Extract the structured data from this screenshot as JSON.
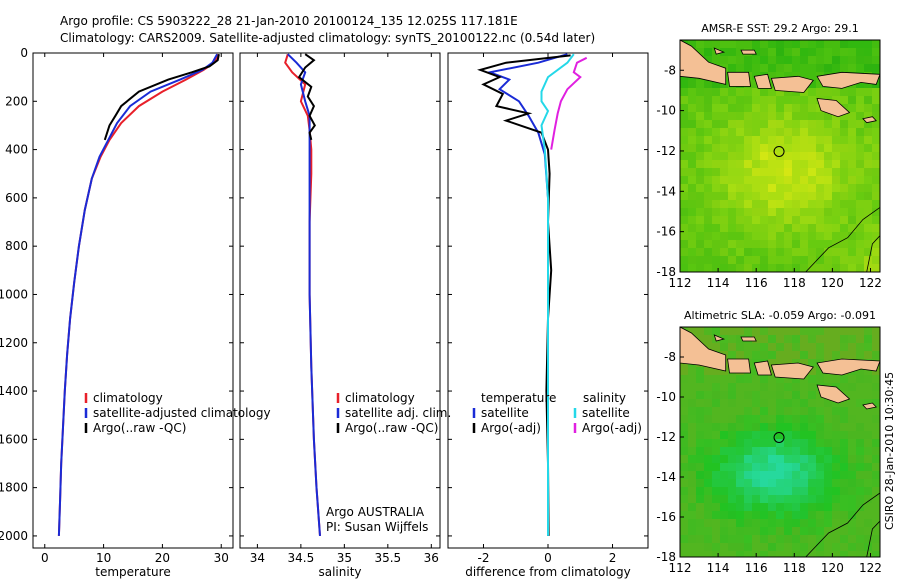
{
  "header": {
    "line1": "Argo profile: CS 5903222_28 21-Jan-2010 20100124_135 12.025S 117.181E",
    "line2": "Climatology: CARS2009. Satellite-adjusted climatology: synTS_20100122.nc (0.54d later)"
  },
  "side_text": "CSIRO 28-Jan-2010 10:30:45",
  "colors": {
    "climatology": "#e8202a",
    "satellite": "#1a2bd6",
    "argo": "#000000",
    "sat_diff": "#24d8e8",
    "argo_adj": "#e020e0",
    "land": "#f4c095"
  },
  "chart_data": [
    {
      "type": "line",
      "id": "temperature",
      "xlabel": "temperature",
      "ylabel": "",
      "xlim": [
        -2,
        32
      ],
      "ylim": [
        2050,
        0
      ],
      "xticks": [
        "0",
        "10",
        "20",
        "30"
      ],
      "xtick_values": [
        0,
        10,
        20,
        30
      ],
      "yticks": [
        "0",
        "200",
        "400",
        "600",
        "800",
        "1000",
        "1200",
        "1400",
        "1600",
        "1800",
        "2000"
      ],
      "ytick_values": [
        0,
        200,
        400,
        600,
        800,
        1000,
        1200,
        1400,
        1600,
        1800,
        2000
      ],
      "legend": [
        "climatology",
        "satellite-adjusted climatology",
        "Argo(..raw -QC)"
      ],
      "series": [
        {
          "name": "climatology",
          "color": "#e8202a",
          "points": [
            [
              29.5,
              5
            ],
            [
              28.8,
              40
            ],
            [
              27,
              70
            ],
            [
              24,
              110
            ],
            [
              20,
              160
            ],
            [
              16,
              220
            ],
            [
              13,
              290
            ],
            [
              11,
              360
            ],
            [
              9.5,
              430
            ],
            [
              8,
              520
            ],
            [
              6.8,
              650
            ],
            [
              5.8,
              800
            ],
            [
              5,
              950
            ],
            [
              4.3,
              1100
            ],
            [
              3.8,
              1250
            ],
            [
              3.4,
              1400
            ],
            [
              3.1,
              1550
            ],
            [
              2.8,
              1700
            ],
            [
              2.6,
              1850
            ],
            [
              2.4,
              2000
            ]
          ]
        },
        {
          "name": "satellite-adjusted climatology",
          "color": "#1a2bd6",
          "points": [
            [
              29.3,
              5
            ],
            [
              28.5,
              40
            ],
            [
              26.8,
              70
            ],
            [
              23,
              110
            ],
            [
              18,
              160
            ],
            [
              14.5,
              220
            ],
            [
              12.3,
              290
            ],
            [
              10.8,
              360
            ],
            [
              9.3,
              430
            ],
            [
              8,
              520
            ],
            [
              6.8,
              650
            ],
            [
              5.8,
              800
            ],
            [
              5,
              950
            ],
            [
              4.3,
              1100
            ],
            [
              3.8,
              1250
            ],
            [
              3.4,
              1400
            ],
            [
              3.1,
              1550
            ],
            [
              2.8,
              1700
            ],
            [
              2.6,
              1850
            ],
            [
              2.4,
              2000
            ]
          ]
        },
        {
          "name": "Argo(..raw -QC)",
          "color": "#000000",
          "points": [
            [
              29.6,
              5
            ],
            [
              29.4,
              30
            ],
            [
              28,
              55
            ],
            [
              25,
              80
            ],
            [
              21,
              110
            ],
            [
              16,
              160
            ],
            [
              13,
              220
            ],
            [
              12,
              260
            ],
            [
              11,
              300
            ],
            [
              10.2,
              360
            ]
          ]
        }
      ]
    },
    {
      "type": "line",
      "id": "salinity",
      "xlabel": "salinity",
      "ylabel": "",
      "xlim": [
        33.8,
        36.1
      ],
      "ylim": [
        2050,
        0
      ],
      "xticks": [
        "34",
        "34.5",
        "35",
        "35.5",
        "36"
      ],
      "xtick_values": [
        34,
        34.5,
        35,
        35.5,
        36
      ],
      "yticks": [],
      "ytick_values": [],
      "legend": [
        "climatology",
        "satellite adj. clim.",
        "Argo(..raw -QC)"
      ],
      "annotations": [
        "Argo AUSTRALIA",
        "PI: Susan Wijffels"
      ],
      "series": [
        {
          "name": "climatology",
          "color": "#e8202a",
          "points": [
            [
              34.35,
              5
            ],
            [
              34.32,
              40
            ],
            [
              34.4,
              80
            ],
            [
              34.55,
              130
            ],
            [
              34.5,
              200
            ],
            [
              34.58,
              260
            ],
            [
              34.6,
              320
            ],
            [
              34.62,
              400
            ],
            [
              34.62,
              500
            ],
            [
              34.6,
              700
            ],
            [
              34.6,
              1000
            ],
            [
              34.62,
              1300
            ],
            [
              34.65,
              1600
            ],
            [
              34.68,
              1800
            ],
            [
              34.72,
              2000
            ]
          ]
        },
        {
          "name": "satellite adj. clim.",
          "color": "#1a2bd6",
          "points": [
            [
              34.35,
              5
            ],
            [
              34.45,
              40
            ],
            [
              34.55,
              80
            ],
            [
              34.5,
              130
            ],
            [
              34.55,
              200
            ],
            [
              34.6,
              260
            ],
            [
              34.6,
              320
            ],
            [
              34.6,
              400
            ],
            [
              34.6,
              500
            ],
            [
              34.6,
              700
            ],
            [
              34.6,
              1000
            ],
            [
              34.62,
              1300
            ],
            [
              34.65,
              1600
            ],
            [
              34.68,
              1800
            ],
            [
              34.72,
              2000
            ]
          ]
        },
        {
          "name": "Argo(..raw -QC)",
          "color": "#000000",
          "points": [
            [
              34.55,
              5
            ],
            [
              34.65,
              30
            ],
            [
              34.55,
              60
            ],
            [
              34.48,
              100
            ],
            [
              34.62,
              140
            ],
            [
              34.58,
              180
            ],
            [
              34.65,
              220
            ],
            [
              34.6,
              260
            ],
            [
              34.66,
              300
            ],
            [
              34.6,
              330
            ],
            [
              34.62,
              360
            ]
          ]
        }
      ]
    },
    {
      "type": "line",
      "id": "difference",
      "xlabel": "difference from climatology",
      "ylabel": "",
      "xlim": [
        -3.1,
        3.1
      ],
      "ylim": [
        2050,
        0
      ],
      "xticks": [
        "-2",
        "0",
        "2"
      ],
      "xtick_values": [
        -2,
        0,
        2
      ],
      "yticks": [],
      "ytick_values": [],
      "legend_left_title": "temperature",
      "legend_right_title": "salinity",
      "legend": [
        "satellite",
        "Argo(-adj)",
        "satellite",
        "Argo(-adj)"
      ],
      "series": [
        {
          "name": "temperature satellite",
          "color": "#1a2bd6",
          "points": [
            [
              0.6,
              5
            ],
            [
              -0.3,
              40
            ],
            [
              -1.8,
              80
            ],
            [
              -1.2,
              110
            ],
            [
              -1.5,
              150
            ],
            [
              -0.9,
              200
            ],
            [
              -0.6,
              260
            ],
            [
              -0.3,
              330
            ],
            [
              -0.1,
              420
            ],
            [
              0,
              600
            ],
            [
              0,
              1000
            ],
            [
              0,
              1500
            ],
            [
              0,
              2000
            ]
          ]
        },
        {
          "name": "temperature Argo(-adj)",
          "color": "#000000",
          "points": [
            [
              0.7,
              10
            ],
            [
              -1.3,
              40
            ],
            [
              -2.1,
              70
            ],
            [
              -1.5,
              100
            ],
            [
              -2.0,
              130
            ],
            [
              -1.4,
              170
            ],
            [
              -1.6,
              220
            ],
            [
              -0.6,
              250
            ],
            [
              -1.3,
              280
            ],
            [
              -0.2,
              330
            ],
            [
              0,
              400
            ],
            [
              0.05,
              500
            ],
            [
              0,
              700
            ],
            [
              0.1,
              900
            ],
            [
              0,
              1100
            ],
            [
              -0.05,
              1400
            ],
            [
              0,
              1700
            ],
            [
              0.02,
              2000
            ]
          ]
        },
        {
          "name": "salinity satellite",
          "color": "#24d8e8",
          "points": [
            [
              0.8,
              5
            ],
            [
              0.6,
              40
            ],
            [
              0,
              100
            ],
            [
              -0.2,
              160
            ],
            [
              -0.2,
              200
            ],
            [
              0,
              240
            ],
            [
              -0.2,
              300
            ],
            [
              -0.1,
              400
            ],
            [
              0,
              600
            ],
            [
              0,
              1000
            ],
            [
              0,
              1500
            ],
            [
              0,
              2000
            ]
          ]
        },
        {
          "name": "salinity Argo(-adj)",
          "color": "#e020e0",
          "points": [
            [
              1.2,
              20
            ],
            [
              0.9,
              40
            ],
            [
              0.8,
              80
            ],
            [
              1.0,
              100
            ],
            [
              0.6,
              150
            ],
            [
              0.4,
              200
            ],
            [
              0.3,
              250
            ],
            [
              0.2,
              320
            ],
            [
              0.1,
              400
            ]
          ]
        }
      ]
    },
    {
      "type": "heatmap",
      "id": "sst_map",
      "title": "AMSR-E SST: 29.2  Argo: 29.1",
      "xticks": [
        "112",
        "114",
        "116",
        "118",
        "120",
        "122"
      ],
      "xtick_values": [
        112,
        114,
        116,
        118,
        120,
        122
      ],
      "yticks": [
        "-8",
        "-10",
        "-12",
        "-14",
        "-16",
        "-18"
      ],
      "ytick_values": [
        -8,
        -10,
        -12,
        -14,
        -16,
        -18
      ],
      "xlim": [
        112,
        122.5
      ],
      "ylim": [
        -18,
        -6.5
      ],
      "marker": [
        117.2,
        -12.025
      ]
    },
    {
      "type": "heatmap",
      "id": "sla_map",
      "title": "Altimetric SLA: -0.059  Argo: -0.091",
      "xticks": [
        "112",
        "114",
        "116",
        "118",
        "120",
        "122"
      ],
      "xtick_values": [
        112,
        114,
        116,
        118,
        120,
        122
      ],
      "yticks": [
        "-8",
        "-10",
        "-12",
        "-14",
        "-16",
        "-18"
      ],
      "ytick_values": [
        -8,
        -10,
        -12,
        -14,
        -16,
        -18
      ],
      "xlim": [
        112,
        122.5
      ],
      "ylim": [
        -18,
        -6.5
      ],
      "marker": [
        117.2,
        -12.025
      ]
    }
  ]
}
